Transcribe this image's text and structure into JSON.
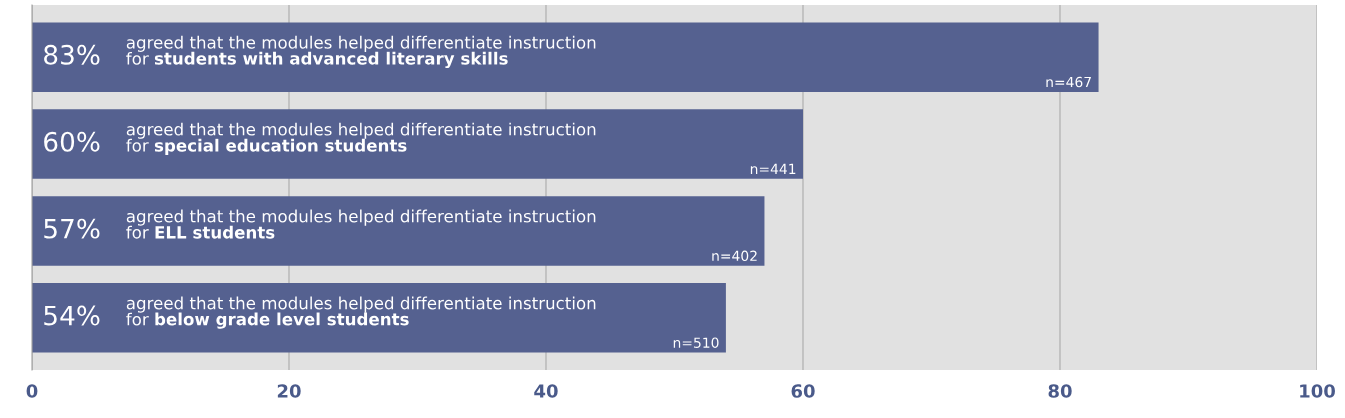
{
  "chart_data": {
    "type": "bar",
    "orientation": "horizontal",
    "categories": [
      "agreed that the modules helped differentiate instruction\nfor students with advanced literary skills",
      "agreed that the modules helped differentiate instruction\nfor special education students",
      "agreed that the modules helped differentiate instruction\nfor ELL students",
      "agreed that the modules helped differentiate instruction\nfor below grade level students"
    ],
    "values": [
      83,
      60,
      57,
      54
    ],
    "value_labels": [
      "83%",
      "60%",
      "57%",
      "54%"
    ],
    "color": "#556190",
    "xlim": [
      0,
      100
    ],
    "xticks": [
      0,
      20,
      40,
      60,
      80,
      100
    ],
    "grid": "x",
    "tick_labels": "x",
    "annotations": [
      {
        "text": "n=467",
        "x": 83,
        "y": "agreed that the modules helped differentiate instruction\nfor students with advanced literary skills"
      },
      {
        "text": "n=441",
        "x": 60,
        "y": "agreed that the modules helped differentiate instruction\nfor special education students"
      },
      {
        "text": "n=402",
        "x": 57,
        "y": "agreed that the modules helped differentiate instruction\nfor ELL students"
      },
      {
        "text": "n=510",
        "x": 54,
        "y": "agreed that the modules helped differentiate instruction\nfor below grade level students"
      }
    ]
  }
}
